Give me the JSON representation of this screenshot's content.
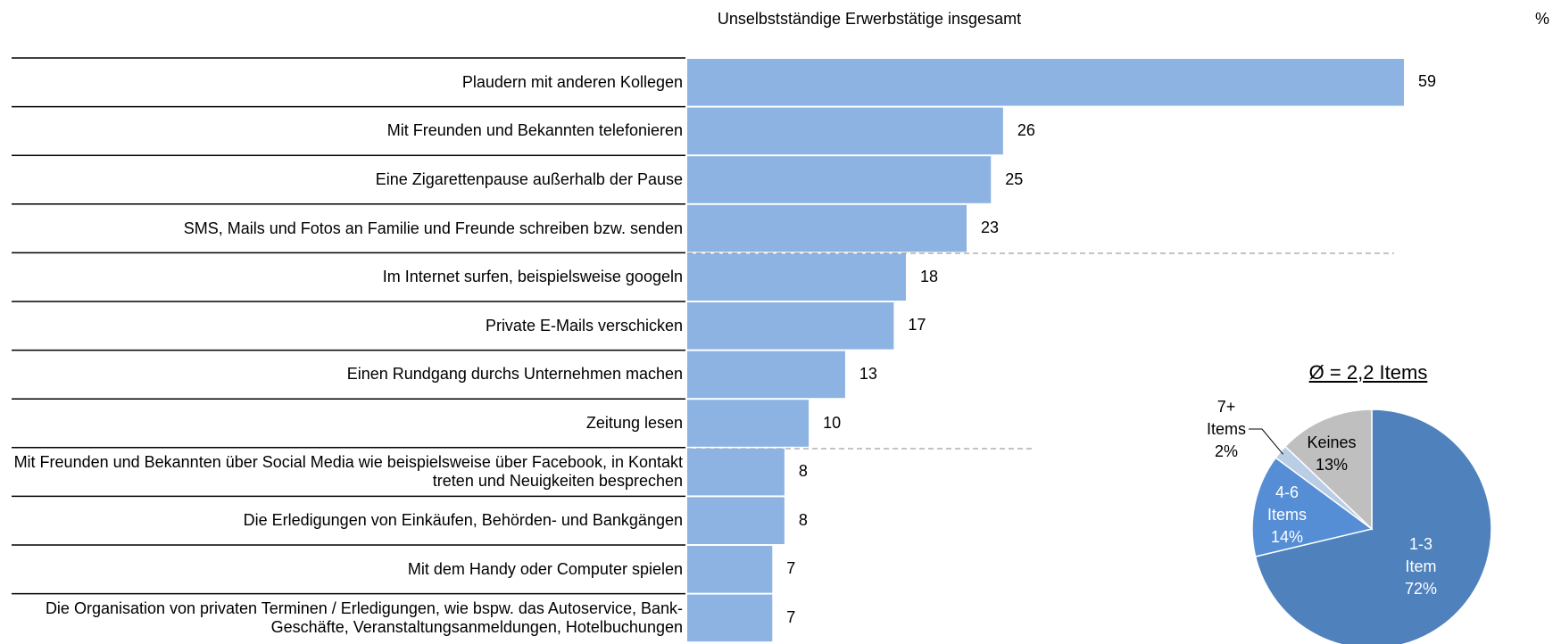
{
  "chart_data": [
    {
      "type": "hbar",
      "title": "Unselbstständige Erwerbstätige insgesamt",
      "unit": "%",
      "color": "#8db3e2",
      "categories": [
        "Plaudern mit anderen Kollegen",
        "Mit Freunden und Bekannten telefonieren",
        "Eine Zigarettenpause außerhalb der Pause",
        "SMS, Mails und Fotos an Familie und Freunde schreiben bzw. senden",
        "Im Internet surfen, beispielsweise googeln",
        "Private E-Mails verschicken",
        "Einen Rundgang durchs Unternehmen machen",
        "Zeitung lesen",
        "Mit Freunden und Bekannten über Social Media wie beispielsweise über Facebook, in Kontakt treten und Neuigkeiten besprechen",
        "Die Erledigungen von Einkäufen, Behörden- und Bankgängen",
        "Mit dem Handy oder Computer spielen",
        "Die Organisation von privaten Terminen / Erledigungen, wie bspw. das Autoservice, Bank- Geschäfte, Veranstaltungsanmeldungen, Hotelbuchungen"
      ],
      "values": [
        59,
        26,
        25,
        23,
        18,
        17,
        13,
        10,
        8,
        8,
        7,
        7
      ]
    },
    {
      "type": "pie",
      "title": "Ø = 2,2 Items",
      "categories": [
        "1-3 Item",
        "4-6 Items",
        "7+ Items",
        "Keines"
      ],
      "values": [
        72,
        14,
        2,
        13
      ],
      "value_labels": [
        "72%",
        "14%",
        "2%",
        "13%"
      ],
      "colors": [
        "#4f81bd",
        "#558ed5",
        "#b9cde5",
        "#bfbfbf"
      ]
    }
  ]
}
